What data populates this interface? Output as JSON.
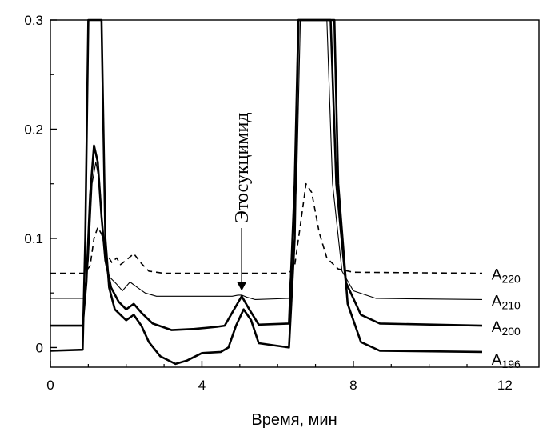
{
  "chart_data": {
    "type": "line",
    "xlabel": "Время, мин",
    "ylabel": "",
    "xlim": [
      0,
      12.9
    ],
    "ylim": [
      -0.018,
      0.3
    ],
    "x_ticks": [
      0,
      4,
      8,
      12
    ],
    "y_ticks": [
      0,
      0.1,
      0.2,
      0.3
    ],
    "x_tick_labels": [
      "0",
      "4",
      "8",
      "12"
    ],
    "y_tick_labels": [
      "0",
      "0.1",
      "0.2",
      "0.3"
    ],
    "grid": false,
    "legend": "inline-right",
    "annotation": {
      "text": "Этосукцимид",
      "x": 5.05,
      "y": 0.052
    },
    "series": [
      {
        "name": "A",
        "subscript": "220",
        "style": "dashed",
        "label_x": 11.65,
        "label_y": 0.068,
        "points": [
          [
            0,
            0.068
          ],
          [
            0.9,
            0.068
          ],
          [
            1.05,
            0.075
          ],
          [
            1.15,
            0.1
          ],
          [
            1.25,
            0.11
          ],
          [
            1.35,
            0.104
          ],
          [
            1.5,
            0.085
          ],
          [
            1.62,
            0.078
          ],
          [
            1.75,
            0.082
          ],
          [
            1.85,
            0.076
          ],
          [
            2.0,
            0.08
          ],
          [
            2.2,
            0.086
          ],
          [
            2.4,
            0.077
          ],
          [
            2.6,
            0.07
          ],
          [
            3.0,
            0.068
          ],
          [
            5.0,
            0.068
          ],
          [
            6.3,
            0.068
          ],
          [
            6.45,
            0.075
          ],
          [
            6.6,
            0.112
          ],
          [
            6.75,
            0.15
          ],
          [
            6.9,
            0.142
          ],
          [
            7.1,
            0.105
          ],
          [
            7.3,
            0.082
          ],
          [
            7.6,
            0.072
          ],
          [
            8.0,
            0.069
          ],
          [
            11.4,
            0.068
          ]
        ]
      },
      {
        "name": "A",
        "subscript": "210",
        "style": "thin",
        "label_x": 11.65,
        "label_y": 0.044,
        "points": [
          [
            0,
            0.045
          ],
          [
            0.9,
            0.045
          ],
          [
            1.0,
            0.08
          ],
          [
            1.1,
            0.15
          ],
          [
            1.2,
            0.17
          ],
          [
            1.3,
            0.15
          ],
          [
            1.4,
            0.1
          ],
          [
            1.55,
            0.065
          ],
          [
            1.75,
            0.058
          ],
          [
            1.9,
            0.052
          ],
          [
            2.1,
            0.06
          ],
          [
            2.3,
            0.055
          ],
          [
            2.5,
            0.05
          ],
          [
            2.8,
            0.047
          ],
          [
            3.2,
            0.047
          ],
          [
            4.4,
            0.047
          ],
          [
            4.8,
            0.047
          ],
          [
            4.95,
            0.048
          ],
          [
            5.05,
            0.048
          ],
          [
            5.2,
            0.046
          ],
          [
            5.4,
            0.044
          ],
          [
            6.3,
            0.045
          ],
          [
            6.5,
            0.15
          ],
          [
            6.6,
            0.3
          ],
          [
            7.3,
            0.3
          ],
          [
            7.45,
            0.15
          ],
          [
            7.7,
            0.07
          ],
          [
            8.0,
            0.052
          ],
          [
            8.6,
            0.045
          ],
          [
            11.4,
            0.044
          ]
        ]
      },
      {
        "name": "A",
        "subscript": "200",
        "style": "thick",
        "label_x": 11.65,
        "label_y": 0.02,
        "points": [
          [
            0,
            0.02
          ],
          [
            0.85,
            0.02
          ],
          [
            0.95,
            0.06
          ],
          [
            1.05,
            0.14
          ],
          [
            1.15,
            0.185
          ],
          [
            1.25,
            0.17
          ],
          [
            1.35,
            0.12
          ],
          [
            1.45,
            0.08
          ],
          [
            1.6,
            0.055
          ],
          [
            1.8,
            0.042
          ],
          [
            2.0,
            0.035
          ],
          [
            2.2,
            0.04
          ],
          [
            2.4,
            0.032
          ],
          [
            2.7,
            0.022
          ],
          [
            3.2,
            0.016
          ],
          [
            3.8,
            0.017
          ],
          [
            4.4,
            0.019
          ],
          [
            4.6,
            0.02
          ],
          [
            4.8,
            0.032
          ],
          [
            5.05,
            0.047
          ],
          [
            5.25,
            0.035
          ],
          [
            5.5,
            0.021
          ],
          [
            6.3,
            0.022
          ],
          [
            6.45,
            0.15
          ],
          [
            6.55,
            0.3
          ],
          [
            7.4,
            0.3
          ],
          [
            7.55,
            0.15
          ],
          [
            7.8,
            0.06
          ],
          [
            8.2,
            0.03
          ],
          [
            8.7,
            0.022
          ],
          [
            11.4,
            0.02
          ]
        ]
      },
      {
        "name": "A",
        "subscript": "196",
        "style": "thick",
        "label_x": 11.65,
        "label_y": -0.01,
        "points": [
          [
            0,
            -0.003
          ],
          [
            0.85,
            -0.002
          ],
          [
            0.92,
            0.1
          ],
          [
            1.0,
            0.3
          ],
          [
            1.35,
            0.3
          ],
          [
            1.45,
            0.1
          ],
          [
            1.55,
            0.055
          ],
          [
            1.7,
            0.035
          ],
          [
            1.85,
            0.03
          ],
          [
            2.0,
            0.025
          ],
          [
            2.2,
            0.03
          ],
          [
            2.4,
            0.02
          ],
          [
            2.6,
            0.005
          ],
          [
            2.9,
            -0.008
          ],
          [
            3.3,
            -0.015
          ],
          [
            3.6,
            -0.012
          ],
          [
            4.0,
            -0.005
          ],
          [
            4.5,
            -0.004
          ],
          [
            4.7,
            0.0
          ],
          [
            4.9,
            0.02
          ],
          [
            5.1,
            0.035
          ],
          [
            5.3,
            0.025
          ],
          [
            5.5,
            0.004
          ],
          [
            6.3,
            0.0
          ],
          [
            6.45,
            0.1
          ],
          [
            6.55,
            0.3
          ],
          [
            7.5,
            0.3
          ],
          [
            7.6,
            0.15
          ],
          [
            7.85,
            0.04
          ],
          [
            8.2,
            0.005
          ],
          [
            8.7,
            -0.003
          ],
          [
            11.4,
            -0.004
          ]
        ]
      }
    ]
  }
}
